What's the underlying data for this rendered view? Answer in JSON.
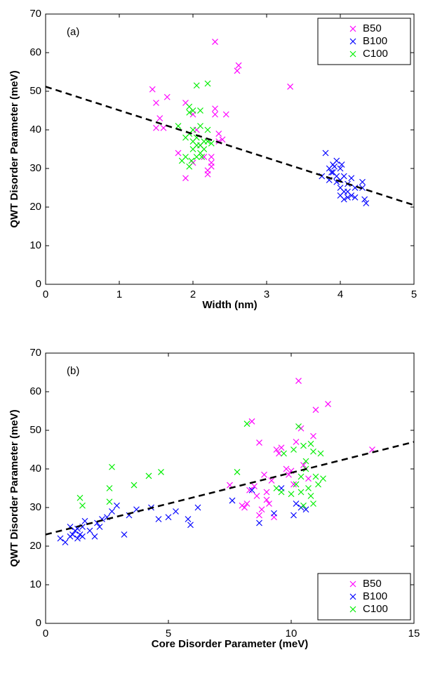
{
  "chart_data": [
    {
      "type": "scatter",
      "annotation": "(a)",
      "xlabel": "Width (nm)",
      "ylabel": "QWT Disorder Parameter (meV)",
      "xlim": [
        0,
        5
      ],
      "ylim": [
        0,
        70
      ],
      "xticks": [
        0,
        1,
        2,
        3,
        4,
        5
      ],
      "yticks": [
        0,
        10,
        20,
        30,
        40,
        50,
        60,
        70
      ],
      "legend": "upper right",
      "marker": "x",
      "fit": {
        "color": "#000000",
        "x": [
          0,
          5
        ],
        "y": [
          51.2,
          20.5
        ]
      },
      "series": [
        {
          "name": "B50",
          "color": "#ff00ff",
          "x": [
            1.45,
            1.5,
            1.5,
            1.55,
            1.6,
            1.65,
            1.8,
            1.9,
            1.9,
            2.0,
            2.05,
            2.1,
            2.15,
            2.2,
            2.2,
            2.25,
            2.25,
            2.3,
            2.3,
            2.3,
            2.35,
            2.35,
            2.4,
            2.45,
            2.6,
            2.62,
            3.32,
            2.25,
            2.0
          ],
          "values": [
            50.5,
            47,
            40.5,
            43,
            40.5,
            48.5,
            34,
            27.5,
            47,
            44,
            40,
            36,
            33,
            29.5,
            28.5,
            30.5,
            31.5,
            44,
            45.5,
            62.8,
            39,
            37,
            37.5,
            44,
            55.3,
            56.7,
            51.2,
            33,
            31.5
          ]
        },
        {
          "name": "B100",
          "color": "#0000ff",
          "x": [
            3.75,
            3.8,
            3.85,
            3.85,
            3.9,
            3.9,
            3.95,
            3.95,
            3.95,
            4.0,
            4.0,
            4.0,
            4.0,
            4.05,
            4.05,
            4.05,
            4.1,
            4.1,
            4.1,
            4.15,
            4.15,
            4.2,
            4.2,
            4.3,
            4.3,
            4.33,
            4.35,
            3.92,
            3.88,
            4.02
          ],
          "values": [
            28,
            34,
            30,
            27,
            29,
            31,
            28,
            26.5,
            32,
            25,
            27,
            30,
            23,
            24,
            22,
            28,
            24,
            26,
            22.5,
            23,
            27.5,
            22.5,
            25,
            26.5,
            25,
            22,
            21,
            30.5,
            29,
            31
          ]
        },
        {
          "name": "C100",
          "color": "#00ee00",
          "x": [
            1.8,
            1.85,
            1.9,
            1.9,
            1.95,
            1.95,
            1.95,
            2.0,
            2.0,
            2.0,
            2.0,
            2.05,
            2.05,
            2.05,
            2.1,
            2.1,
            2.1,
            2.1,
            2.15,
            2.15,
            2.2,
            2.2,
            2.25,
            2.2,
            1.95,
            2.05,
            1.98,
            2.12
          ],
          "values": [
            41,
            32,
            33,
            38,
            46,
            44.5,
            39,
            45,
            37,
            35,
            40,
            36,
            38,
            51.5,
            34,
            36,
            41,
            45,
            35,
            37,
            37,
            52,
            36.5,
            40,
            30.5,
            33,
            32,
            33
          ]
        }
      ]
    },
    {
      "type": "scatter",
      "annotation": "(b)",
      "xlabel": "Core Disorder Parameter (meV)",
      "ylabel": "QWT Disorder Parameter (meV)",
      "xlim": [
        0,
        15
      ],
      "ylim": [
        0,
        70
      ],
      "xticks": [
        0,
        5,
        10,
        15
      ],
      "yticks": [
        0,
        10,
        20,
        30,
        40,
        50,
        60,
        70
      ],
      "legend": "lower right",
      "marker": "x",
      "fit": {
        "color": "#000000",
        "x": [
          0,
          15
        ],
        "y": [
          23,
          47
        ]
      },
      "series": [
        {
          "name": "B50",
          "color": "#ff00ff",
          "x": [
            7.5,
            8.0,
            8.1,
            8.2,
            8.3,
            8.4,
            8.5,
            8.6,
            8.7,
            8.7,
            8.8,
            8.9,
            9.0,
            9.0,
            9.1,
            9.2,
            9.3,
            9.4,
            9.5,
            9.6,
            9.8,
            10.0,
            10.1,
            10.3,
            10.4,
            10.5,
            10.7,
            10.9,
            11.0,
            11.5,
            13.3,
            10.2,
            9.9
          ],
          "values": [
            35.8,
            30.5,
            30,
            31,
            34.5,
            52.3,
            35.5,
            33,
            46.8,
            28,
            29.5,
            38.5,
            32,
            34,
            31,
            37,
            27.5,
            45,
            44,
            45.5,
            40,
            39.5,
            36,
            62.8,
            50.5,
            41,
            37.5,
            48.5,
            55.3,
            56.8,
            45,
            47,
            38.5
          ]
        },
        {
          "name": "B100",
          "color": "#0000ff",
          "x": [
            0.6,
            0.8,
            1.0,
            1.0,
            1.1,
            1.2,
            1.3,
            1.3,
            1.4,
            1.5,
            1.6,
            1.5,
            1.8,
            2.0,
            2.1,
            2.2,
            2.3,
            2.5,
            2.7,
            2.9,
            3.2,
            3.4,
            3.7,
            4.3,
            4.6,
            5.0,
            5.3,
            5.8,
            5.9,
            6.2,
            7.6,
            8.7,
            9.3,
            10.1,
            10.4,
            10.6,
            10.2,
            9.6,
            8.4
          ],
          "values": [
            22,
            21,
            22.5,
            25,
            23,
            24,
            22,
            24.5,
            23,
            25,
            26.5,
            22.5,
            24,
            22.5,
            26,
            25,
            27,
            27.5,
            29,
            30.5,
            23,
            28,
            29.5,
            30,
            27,
            27.5,
            29,
            27,
            25.5,
            30,
            31.8,
            26,
            28.5,
            28,
            30,
            29.5,
            31,
            35,
            34.5
          ]
        },
        {
          "name": "C100",
          "color": "#00ee00",
          "x": [
            1.4,
            1.5,
            2.6,
            2.7,
            2.6,
            3.6,
            4.2,
            4.7,
            7.8,
            8.2,
            9.4,
            9.6,
            9.7,
            10.0,
            10.1,
            10.2,
            10.3,
            10.4,
            10.4,
            10.5,
            10.6,
            10.7,
            10.8,
            10.8,
            10.9,
            11.0,
            11.1,
            11.2,
            11.3,
            10.6,
            10.9,
            10.5
          ],
          "values": [
            32.5,
            30.5,
            35,
            40.5,
            31.5,
            35.8,
            38.2,
            39.2,
            39.2,
            51.7,
            35,
            34,
            44,
            33.5,
            45,
            36,
            51,
            38,
            34,
            46,
            42,
            35,
            46.5,
            33,
            44.5,
            38,
            36,
            44,
            37.5,
            40,
            31,
            30.5
          ]
        }
      ]
    }
  ]
}
